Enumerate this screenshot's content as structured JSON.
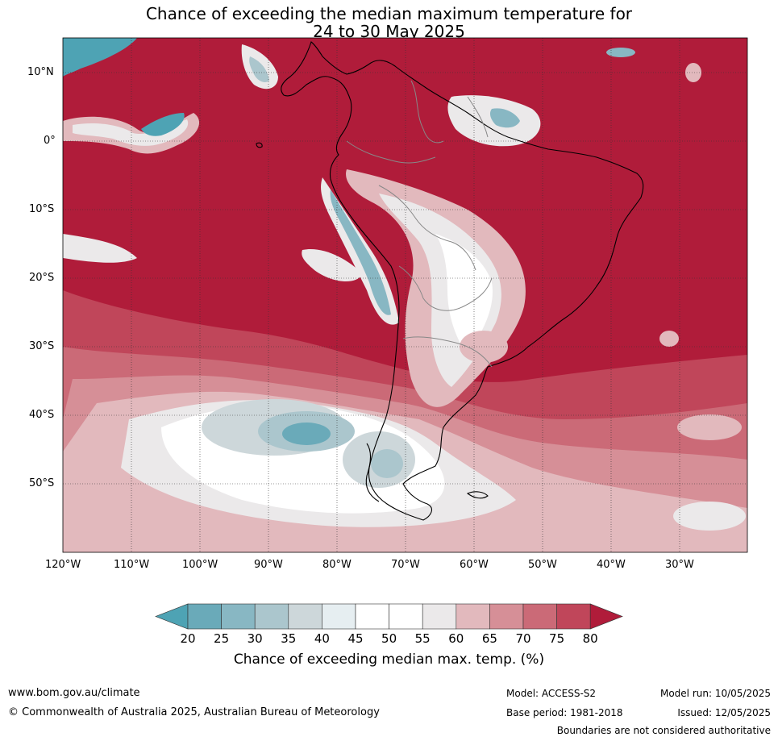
{
  "title": {
    "line1": "Chance of exceeding the median maximum temperature for",
    "line2": "24 to 30 May 2025"
  },
  "map": {
    "lat_labels": [
      "10°N",
      "0°",
      "10°S",
      "20°S",
      "30°S",
      "40°S",
      "50°S"
    ],
    "lon_labels": [
      "120°W",
      "110°W",
      "100°W",
      "90°W",
      "80°W",
      "70°W",
      "60°W",
      "50°W",
      "40°W",
      "30°W"
    ],
    "colors": {
      "above_80": "#b01c3a",
      "c75_80": "#c0465a",
      "c70_75": "#cb6a77",
      "c65_70": "#d68f97",
      "c60_65": "#e2b9bd",
      "c55_60": "#ebe9ea",
      "c45_55": "#ffffff",
      "c40_45": "#e6eef1",
      "c35_40": "#cdd7da",
      "c30_35": "#abc6cd",
      "c25_30": "#88b7c3",
      "c20_25": "#6aaab9",
      "below_20": "#4ea3b4"
    }
  },
  "colorbar": {
    "ticks": [
      "20",
      "25",
      "30",
      "35",
      "40",
      "45",
      "50",
      "55",
      "60",
      "65",
      "70",
      "75",
      "80"
    ],
    "label": "Chance of exceeding median max. temp. (%)"
  },
  "footer": {
    "website": "www.bom.gov.au/climate",
    "copyright": "© Commonwealth of Australia 2025, Australian Bureau of Meteorology",
    "model": "Model: ACCESS-S2",
    "base_period": "Base period: 1981-2018",
    "model_run": "Model run: 10/05/2025",
    "issued": "Issued: 12/05/2025",
    "disclaimer": "Boundaries are not considered authoritative"
  }
}
